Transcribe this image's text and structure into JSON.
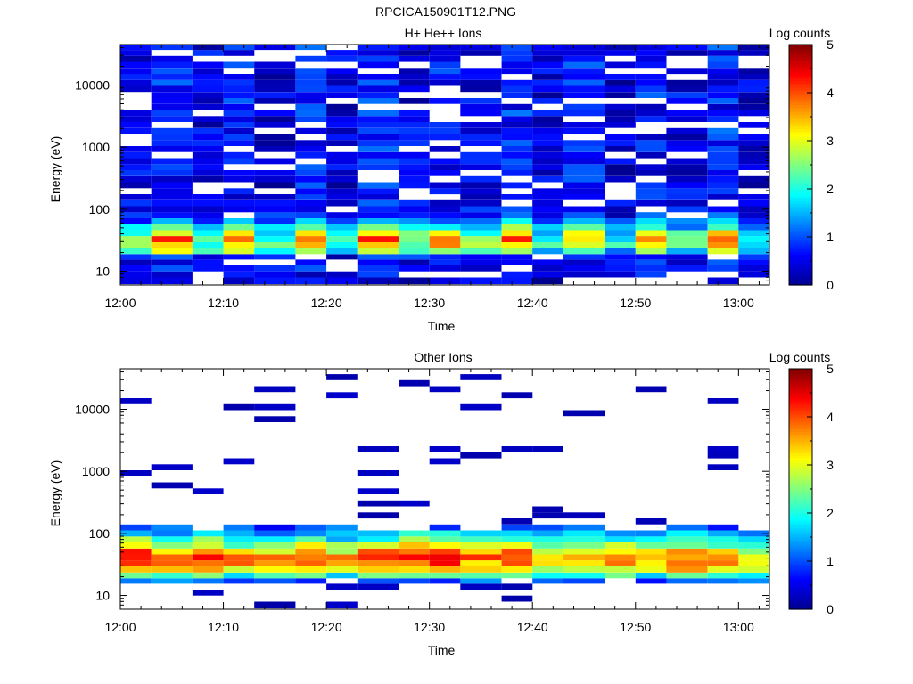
{
  "page": {
    "title": "RPCICA150901T12.PNG"
  },
  "colorbar": {
    "label": "Log counts",
    "range": [
      0,
      5
    ],
    "ticks": [
      "0",
      "1",
      "2",
      "3",
      "4",
      "5"
    ],
    "colormap": [
      "#00008f",
      "#0000ff",
      "#0080ff",
      "#00ffff",
      "#80ff80",
      "#ffff00",
      "#ff8000",
      "#ff0000",
      "#800000"
    ]
  },
  "chart_data": [
    {
      "type": "heatmap",
      "title": "H+ He++ Ions",
      "xlabel": "Time",
      "ylabel": "Energy (eV)",
      "y_scale": "log",
      "ylim": [
        6,
        45000
      ],
      "xlim": [
        "12:00",
        "13:03"
      ],
      "x_ticks": [
        "12:00",
        "12:10",
        "12:20",
        "12:30",
        "12:40",
        "12:50",
        "13:00"
      ],
      "y_ticks": [
        "10",
        "100",
        "1000",
        "10000"
      ],
      "column_start_times": [
        "12:00",
        "12:03",
        "12:07",
        "12:10",
        "12:13",
        "12:17",
        "12:20",
        "12:23",
        "12:27",
        "12:30",
        "12:33",
        "12:37",
        "12:40",
        "12:43",
        "12:47",
        "12:50",
        "12:53",
        "12:57",
        "13:00"
      ],
      "column_end_time": "13:03",
      "energy_channels_eV": [
        7,
        9,
        11,
        14,
        17,
        21,
        26,
        33,
        41,
        51,
        64,
        80,
        100,
        125,
        156,
        195,
        244,
        305,
        381,
        476,
        595,
        744,
        930,
        1160,
        1450,
        1815,
        2270,
        2835,
        3545,
        4430,
        5540,
        6920,
        8650,
        10800,
        13500,
        16900,
        21100,
        26400,
        33000,
        41000
      ],
      "band_profile": [
        0.5,
        0.6,
        0.7,
        0.8,
        1.0,
        2.9,
        3.6,
        3.9,
        3.3,
        2.3,
        1.5,
        1.1,
        0.8,
        0.75,
        0.7,
        0.75,
        0.7,
        0.75,
        0.7,
        0.75,
        0.7,
        0.7,
        0.75,
        0.7,
        0.75,
        0.8,
        0.7,
        0.75,
        0.8,
        0.7,
        0.75,
        0.8,
        0.8,
        0.75,
        0.8,
        0.8,
        0.8,
        0.85,
        0.8,
        0.8
      ],
      "column_peak_log_counts": [
        2.6,
        3.8,
        2.5,
        3.6,
        2.3,
        3.8,
        2.2,
        3.9,
        2.6,
        3.7,
        2.6,
        3.9,
        2.2,
        3.6,
        2.0,
        3.6,
        2.4,
        3.7,
        1.8
      ],
      "empty_fraction": 0.18
    },
    {
      "type": "heatmap",
      "title": "Other Ions",
      "xlabel": "Time",
      "ylabel": "Energy (eV)",
      "y_scale": "log",
      "ylim": [
        6,
        45000
      ],
      "xlim": [
        "12:00",
        "13:03"
      ],
      "x_ticks": [
        "12:00",
        "12:10",
        "12:20",
        "12:30",
        "12:40",
        "12:50",
        "13:00"
      ],
      "y_ticks": [
        "10",
        "100",
        "1000",
        "10000"
      ],
      "column_start_times": [
        "12:00",
        "12:03",
        "12:07",
        "12:10",
        "12:13",
        "12:17",
        "12:20",
        "12:23",
        "12:27",
        "12:30",
        "12:33",
        "12:37",
        "12:40",
        "12:43",
        "12:47",
        "12:50",
        "12:53",
        "12:57",
        "13:00"
      ],
      "column_end_time": "13:03",
      "energy_channels_eV": [
        7,
        9,
        11,
        14,
        17,
        21,
        26,
        33,
        41,
        51,
        64,
        80,
        100,
        125,
        156,
        195,
        244,
        305,
        381,
        476,
        595,
        744,
        930,
        1160,
        1450,
        1815,
        2270,
        2835,
        3545,
        4430,
        5540,
        6920,
        8650,
        10800,
        13500,
        16900,
        21100,
        26400,
        33000,
        41000
      ],
      "band_profile": [
        0.1,
        0.4,
        0.6,
        0.8,
        1.2,
        2.4,
        3.5,
        4.1,
        4.3,
        3.8,
        3.0,
        2.3,
        1.7,
        1.2,
        0.9,
        0.6,
        0.2,
        0.2,
        0.2,
        0.2,
        0.2,
        0.2,
        0.2,
        0.2,
        0.2,
        0.2,
        0.2,
        0.2,
        0.2,
        0.2,
        0.2,
        0.2,
        0.2,
        0.2,
        0.2,
        0.2,
        0.2,
        0.2,
        0.2,
        0.2
      ],
      "column_peak_log_counts": [
        4.6,
        3.9,
        4.4,
        3.7,
        3.6,
        4.2,
        3.5,
        4.1,
        4.3,
        4.3,
        3.8,
        4.2,
        3.6,
        3.4,
        3.8,
        3.6,
        4.0,
        3.6,
        3.2
      ],
      "empty_fraction": 0.55,
      "high_energy_sparse": true
    }
  ]
}
